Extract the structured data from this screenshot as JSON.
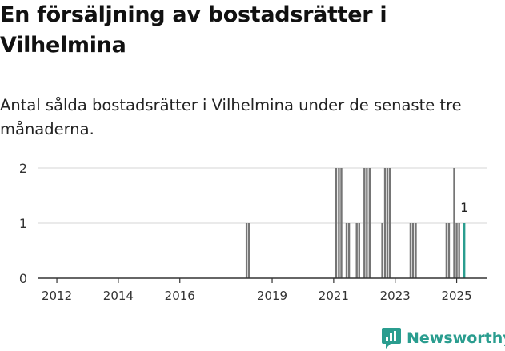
{
  "title": "En försäljning av bostadsrätter i Vilhelmina",
  "subtitle": "Antal sålda bostadsrätter i Vilhelmina under de senaste tre månaderna.",
  "brand": {
    "name": "Newsworthy",
    "icon": "newsworthy-logo-icon",
    "color": "#2a9d8f"
  },
  "chart_data": {
    "type": "bar",
    "title": "En försäljning av bostadsrätter i Vilhelmina",
    "ylabel": "",
    "xlabel": "",
    "ylim": [
      0,
      2
    ],
    "yticks": [
      "0",
      "1",
      "2"
    ],
    "xticks": [
      {
        "label": "2012",
        "t": 2012.0
      },
      {
        "label": "2014",
        "t": 2014.0
      },
      {
        "label": "2016",
        "t": 2016.0
      },
      {
        "label": "2019",
        "t": 2019.0
      },
      {
        "label": "2021",
        "t": 2021.0
      },
      {
        "label": "2023",
        "t": 2023.0
      },
      {
        "label": "2025",
        "t": 2025.0
      }
    ],
    "xlim": [
      2011.4,
      2026.0
    ],
    "bar_color": "#757575",
    "highlight_color": "#2a9d8f",
    "grid_color": "#dddddd",
    "series": [
      {
        "name": "Antal sålda bostadsrätter",
        "bars": [
          {
            "t": 2018.17,
            "value": 1
          },
          {
            "t": 2018.25,
            "value": 1
          },
          {
            "t": 2021.08,
            "value": 2
          },
          {
            "t": 2021.17,
            "value": 2
          },
          {
            "t": 2021.25,
            "value": 2
          },
          {
            "t": 2021.42,
            "value": 1
          },
          {
            "t": 2021.5,
            "value": 1
          },
          {
            "t": 2021.75,
            "value": 1
          },
          {
            "t": 2021.83,
            "value": 1
          },
          {
            "t": 2022.0,
            "value": 2
          },
          {
            "t": 2022.08,
            "value": 2
          },
          {
            "t": 2022.17,
            "value": 2
          },
          {
            "t": 2022.58,
            "value": 1
          },
          {
            "t": 2022.67,
            "value": 2
          },
          {
            "t": 2022.75,
            "value": 2
          },
          {
            "t": 2022.83,
            "value": 2
          },
          {
            "t": 2023.5,
            "value": 1
          },
          {
            "t": 2023.58,
            "value": 1
          },
          {
            "t": 2023.67,
            "value": 1
          },
          {
            "t": 2024.67,
            "value": 1
          },
          {
            "t": 2024.75,
            "value": 1
          },
          {
            "t": 2024.92,
            "value": 2
          },
          {
            "t": 2025.0,
            "value": 1
          },
          {
            "t": 2025.08,
            "value": 1
          },
          {
            "t": 2025.25,
            "value": 1,
            "highlight": true,
            "label": "1"
          }
        ]
      }
    ]
  }
}
